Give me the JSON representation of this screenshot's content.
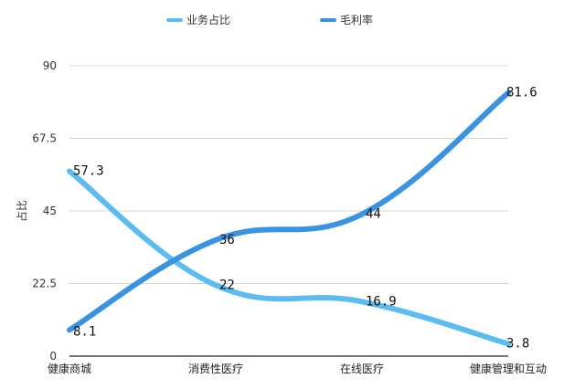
{
  "chart_data": {
    "type": "line",
    "categories": [
      "健康商城",
      "消费性医疗",
      "在线医疗",
      "健康管理和互动"
    ],
    "series": [
      {
        "name": "业务占比",
        "values": [
          57.3,
          22,
          16.9,
          3.8
        ],
        "labels": [
          "57.3",
          "22",
          "16.9",
          "3.8"
        ],
        "color": "#5bbcf0"
      },
      {
        "name": "毛利率",
        "values": [
          8.1,
          36,
          44,
          81.6
        ],
        "labels": [
          "8.1",
          "36",
          "44",
          "81.6"
        ],
        "color": "#3a93e0"
      }
    ],
    "ylabel": "占比",
    "ylim": [
      0,
      90
    ],
    "yticks": [
      0,
      22.5,
      45,
      67.5,
      90
    ],
    "ytick_labels": [
      "0",
      "22.5",
      "45",
      "67.5",
      "90"
    ],
    "grid": true,
    "legend_position": "top"
  }
}
